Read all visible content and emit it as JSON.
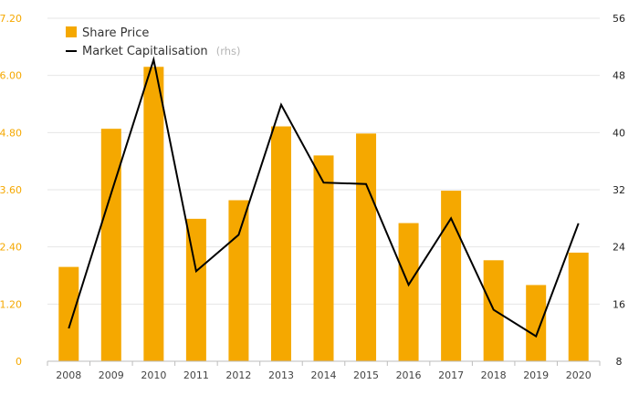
{
  "chart_data": {
    "type": "bar",
    "categories": [
      "2008",
      "2009",
      "2010",
      "2011",
      "2012",
      "2013",
      "2014",
      "2015",
      "2016",
      "2017",
      "2018",
      "2019",
      "2020"
    ],
    "series": [
      {
        "name": "Share Price",
        "type": "bar",
        "axis": "left",
        "values": [
          1.98,
          4.88,
          6.18,
          2.99,
          3.38,
          4.93,
          4.32,
          4.78,
          2.9,
          3.58,
          2.12,
          1.6,
          2.28
        ]
      },
      {
        "name": "Market Capitalisation",
        "type": "line",
        "axis": "right",
        "values": [
          12.6,
          31.5,
          50.2,
          20.6,
          25.7,
          43.9,
          33.0,
          32.8,
          18.7,
          28.0,
          15.2,
          11.5,
          27.3
        ]
      }
    ],
    "y_left": {
      "min": 0,
      "max": 7.2,
      "ticks": [
        "0",
        "1.20",
        "2.40",
        "3.60",
        "4.80",
        "6.00",
        "7.20"
      ]
    },
    "y_right": {
      "min": 8,
      "max": 56,
      "ticks": [
        "8",
        "16",
        "24",
        "32",
        "40",
        "48",
        "56"
      ]
    },
    "grid": true,
    "legend": {
      "position": "top-left",
      "items": [
        {
          "label": "Share Price",
          "note": ""
        },
        {
          "label": "Market Capitalisation",
          "note": "(rhs)"
        }
      ]
    },
    "colors": {
      "bar": "#f5a800",
      "line": "#000000",
      "left_ticks": "#f5a800",
      "grid": "#e6e6e6"
    }
  }
}
